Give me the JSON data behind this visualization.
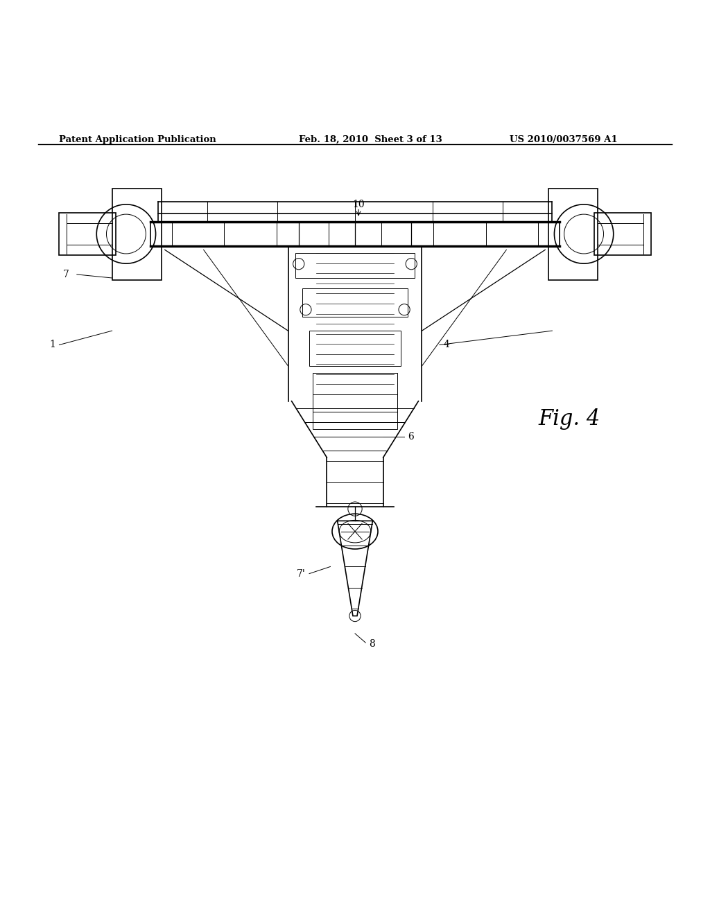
{
  "background_color": "#ffffff",
  "header_left": "Patent Application Publication",
  "header_center": "Feb. 18, 2010  Sheet 3 of 13",
  "header_right": "US 2010/0037569 A1",
  "figure_label": "Fig. 4"
}
